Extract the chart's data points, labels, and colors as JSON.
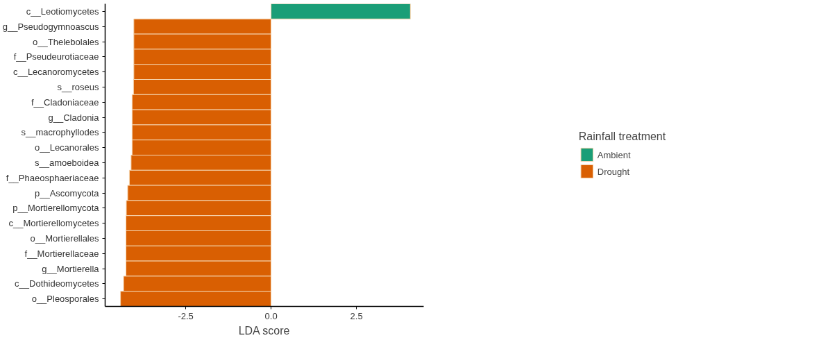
{
  "chart_data": {
    "type": "bar",
    "orientation": "horizontal",
    "xlabel": "LDA score",
    "legend_title": "Rainfall treatment",
    "legend": "right",
    "grid": false,
    "categories": [
      "c__Leotiomycetes",
      "g__Pseudogymnoascus",
      "o__Thelebolales",
      "f__Pseudeurotiaceae",
      "c__Lecanoromycetes",
      "s__roseus",
      "f__Cladoniaceae",
      "g__Cladonia",
      "s__macrophyllodes",
      "o__Lecanorales",
      "s__amoeboidea",
      "f__Phaeosphaeriaceae",
      "p__Ascomycota",
      "p__Mortierellomycota",
      "c__Mortierellomycetes",
      "o__Mortierellales",
      "f__Mortierellaceae",
      "g__Mortierella",
      "c__Dothideomycetes",
      "o__Pleosporales"
    ],
    "series": [
      {
        "name": "Ambient",
        "color": "#1b9e77",
        "values": [
          4.08,
          null,
          null,
          null,
          null,
          null,
          null,
          null,
          null,
          null,
          null,
          null,
          null,
          null,
          null,
          null,
          null,
          null,
          null,
          null
        ]
      },
      {
        "name": "Drought",
        "color": "#d95f02",
        "values": [
          null,
          -4.02,
          -4.02,
          -4.02,
          -4.02,
          -4.03,
          -4.07,
          -4.07,
          -4.07,
          -4.07,
          -4.1,
          -4.15,
          -4.2,
          -4.24,
          -4.25,
          -4.25,
          -4.25,
          -4.25,
          -4.32,
          -4.41
        ]
      }
    ],
    "xlim": [
      -4.86,
      4.47
    ],
    "xticks": [
      {
        "value": -2.5,
        "label": "-2.5"
      },
      {
        "value": 0,
        "label": "0.0"
      },
      {
        "value": 2.5,
        "label": "2.5"
      }
    ]
  }
}
